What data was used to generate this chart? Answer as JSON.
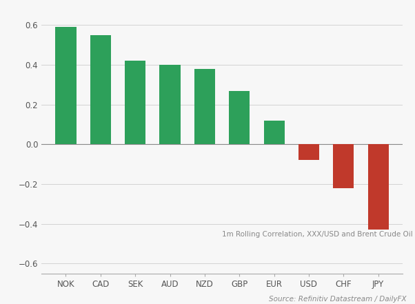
{
  "categories": [
    "NOK",
    "CAD",
    "SEK",
    "AUD",
    "NZD",
    "GBP",
    "EUR",
    "USD",
    "CHF",
    "JPY"
  ],
  "values": [
    0.59,
    0.55,
    0.42,
    0.4,
    0.38,
    0.27,
    0.12,
    -0.08,
    -0.22,
    -0.43
  ],
  "positive_color": "#2da05a",
  "negative_color": "#c0392b",
  "background_color": "#f7f7f7",
  "ylim": [
    -0.65,
    0.68
  ],
  "yticks": [
    -0.6,
    -0.4,
    -0.2,
    0.0,
    0.2,
    0.4,
    0.6
  ],
  "annotation": "1m Rolling Correlation, XXX/USD and Brent Crude Oil",
  "source_text": "Source: Refinitiv Datastream / DailyFX",
  "bar_width": 0.6
}
